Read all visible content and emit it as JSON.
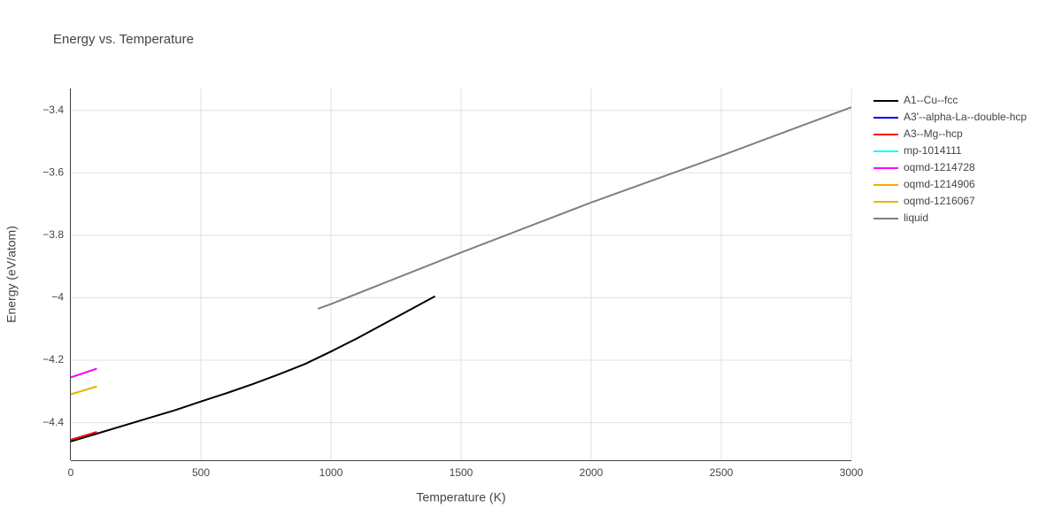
{
  "chart_data": {
    "type": "line",
    "title": "Energy vs. Temperature",
    "xlabel": "Temperature (K)",
    "ylabel": "Energy (eV/atom)",
    "xlim": [
      0,
      3000
    ],
    "xticks": [
      0,
      500,
      1000,
      1500,
      2000,
      2500,
      3000
    ],
    "ylim": [
      -4.52,
      -3.33
    ],
    "yticks": [
      {
        "value": -3.4,
        "label": "−3.4"
      },
      {
        "value": -3.6,
        "label": "−3.6"
      },
      {
        "value": -3.8,
        "label": "−3.8"
      },
      {
        "value": -4,
        "label": "−4"
      },
      {
        "value": -4.2,
        "label": "−4.2"
      },
      {
        "value": -4.4,
        "label": "−4.4"
      }
    ],
    "grid": true,
    "legend": "right",
    "series": [
      {
        "name": "A1--Cu--fcc",
        "color": "#000000",
        "x": [
          0,
          100,
          200,
          300,
          400,
          500,
          600,
          700,
          800,
          900,
          1000,
          1100,
          1200,
          1300,
          1400
        ],
        "values": [
          -4.46,
          -4.435,
          -4.41,
          -4.385,
          -4.36,
          -4.332,
          -4.305,
          -4.276,
          -4.245,
          -4.212,
          -4.172,
          -4.13,
          -4.085,
          -4.04,
          -3.995
        ]
      },
      {
        "name": "A3'--alpha-La--double-hcp",
        "color": "#0000ff",
        "x": [
          0,
          100
        ],
        "values": [
          -4.455,
          -4.43
        ]
      },
      {
        "name": "A3--Mg--hcp",
        "color": "#ff0000",
        "x": [
          0,
          100
        ],
        "values": [
          -4.455,
          -4.43
        ]
      },
      {
        "name": "mp-1014111",
        "color": "#00ffff",
        "x": [
          0,
          100
        ],
        "values": [
          -4.255,
          -4.227
        ]
      },
      {
        "name": "oqmd-1214728",
        "color": "#ff00ff",
        "x": [
          0,
          100
        ],
        "values": [
          -4.255,
          -4.227
        ]
      },
      {
        "name": "oqmd-1214906",
        "color": "#ffa500",
        "x": [
          0,
          100
        ],
        "values": [
          -4.309,
          -4.284
        ]
      },
      {
        "name": "oqmd-1216067",
        "color": "#e6b800",
        "x": [
          0,
          100
        ],
        "values": [
          -4.309,
          -4.284
        ]
      },
      {
        "name": "liquid",
        "color": "#808080",
        "x": [
          950,
          1000,
          1500,
          2000,
          2500,
          3000
        ],
        "values": [
          -4.035,
          -4.02,
          -3.855,
          -3.695,
          -3.545,
          -3.39
        ]
      }
    ]
  }
}
